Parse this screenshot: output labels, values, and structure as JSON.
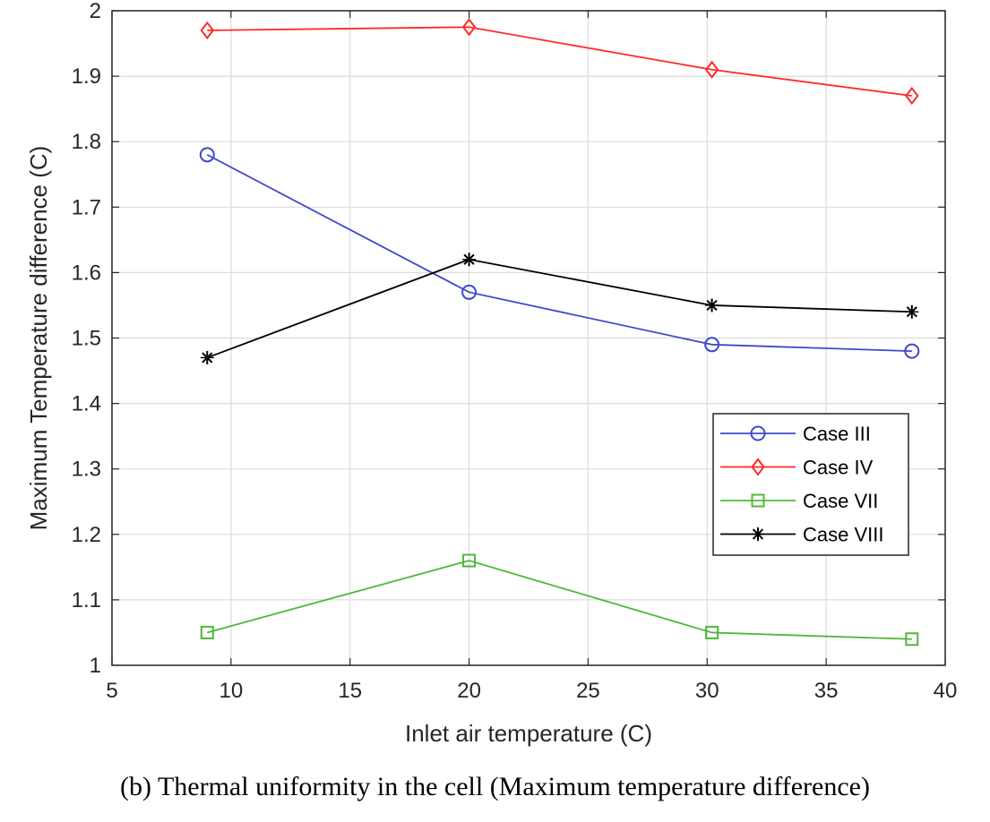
{
  "caption": "(b) Thermal uniformity in the cell (Maximum temperature difference)",
  "chart_data": {
    "type": "line",
    "title": "",
    "xlabel": "Inlet air temperature (C)",
    "ylabel": "Maximum Temperature difference (C)",
    "xlim": [
      5,
      40
    ],
    "ylim": [
      1,
      2
    ],
    "xticks": [
      5,
      10,
      15,
      20,
      25,
      30,
      35,
      40
    ],
    "xtick_labels": [
      "5",
      "10",
      "15",
      "20",
      "25",
      "30",
      "35",
      "40"
    ],
    "yticks": [
      1,
      1.1,
      1.2,
      1.3,
      1.4,
      1.5,
      1.6,
      1.7,
      1.8,
      1.9,
      2
    ],
    "ytick_labels": [
      "1",
      "1.1",
      "1.2",
      "1.3",
      "1.4",
      "1.5",
      "1.6",
      "1.7",
      "1.8",
      "1.9",
      "2"
    ],
    "grid": true,
    "legend_position": "middle-right",
    "x": [
      9,
      20,
      30.2,
      38.6
    ],
    "series": [
      {
        "name": "Case III",
        "color": "#3f48cc",
        "marker": "circle",
        "values": [
          1.78,
          1.57,
          1.49,
          1.48
        ]
      },
      {
        "name": "Case IV",
        "color": "#ff2a2a",
        "marker": "diamond",
        "values": [
          1.97,
          1.975,
          1.91,
          1.87
        ]
      },
      {
        "name": "Case VII",
        "color": "#4fb83a",
        "marker": "square",
        "values": [
          1.05,
          1.16,
          1.05,
          1.04
        ]
      },
      {
        "name": "Case VIII",
        "color": "#000000",
        "marker": "asterisk",
        "values": [
          1.47,
          1.62,
          1.55,
          1.54
        ]
      }
    ]
  }
}
